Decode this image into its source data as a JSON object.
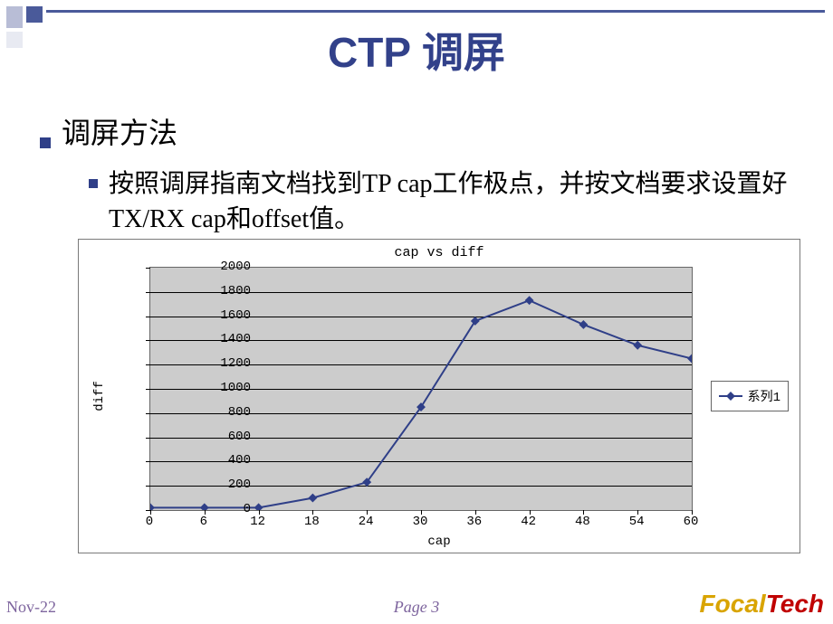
{
  "title": "CTP 调屏",
  "bullet1": "调屏方法",
  "bullet2": "按照调屏指南文档找到TP cap工作极点，并按文档要求设置好TX/RX cap和offset值。",
  "chart": {
    "type": "line",
    "title": "cap vs diff",
    "xlabel": "cap",
    "ylabel": "diff",
    "x": [
      0,
      6,
      12,
      18,
      24,
      30,
      36,
      42,
      48,
      54,
      60
    ],
    "y": [
      20,
      20,
      20,
      100,
      230,
      850,
      1560,
      1730,
      1530,
      1360,
      1250
    ],
    "xlim": [
      0,
      60
    ],
    "ylim": [
      0,
      2000
    ],
    "ytick_step": 200,
    "xtick_step": 6,
    "line_color": "#2f3f88",
    "marker_color": "#2f3f88",
    "marker_size": 7,
    "line_width": 2,
    "plot_bg": "#cccccc",
    "grid_color": "#000000",
    "legend_label": "系列1",
    "title_fontsize": 15,
    "label_fontsize": 14,
    "tick_fontsize": 14
  },
  "footer": {
    "date": "Nov-22",
    "page": "Page 3",
    "logo_focal": "Focal",
    "logo_tech": "Tech"
  },
  "colors": {
    "title_color": "#32418a",
    "bullet_color": "#2f3f88",
    "footer_text": "#7e659e"
  }
}
